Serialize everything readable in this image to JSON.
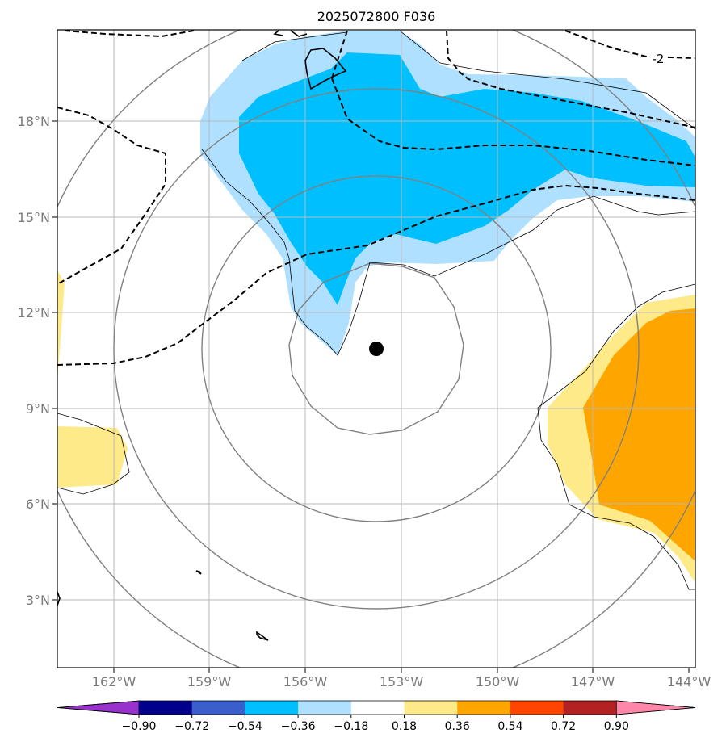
{
  "title": "2025072800 F036",
  "axes": {
    "lon_ticks": [
      "162°W",
      "159°W",
      "156°W",
      "153°W",
      "150°W",
      "147°W",
      "144°W"
    ],
    "lat_ticks": [
      "18°N",
      "15°N",
      "12°N",
      "9°N",
      "6°N",
      "3°N"
    ],
    "lon_range": [
      -164,
      -144
    ],
    "lat_range": [
      1,
      21
    ],
    "grid": true
  },
  "contour_label": "-2",
  "storm_center": {
    "lon": -153.8,
    "lat": 10.85
  },
  "colorbar": {
    "labels": [
      "−0.90",
      "−0.72",
      "−0.54",
      "−0.36",
      "−0.18",
      "0.18",
      "0.36",
      "0.54",
      "0.72",
      "0.90"
    ],
    "colors": [
      "#9932cc",
      "#00008b",
      "#3a5fcd",
      "#00bfff",
      "#b0e0ff",
      "#ffffff",
      "#ffea8a",
      "#ffa500",
      "#ff4500",
      "#b22222",
      "#ff88aa"
    ]
  },
  "shading_colors": {
    "light_blue": "#b0e0ff",
    "blue": "#00bfff",
    "light_yellow": "#ffea8a",
    "orange": "#ffa500"
  }
}
